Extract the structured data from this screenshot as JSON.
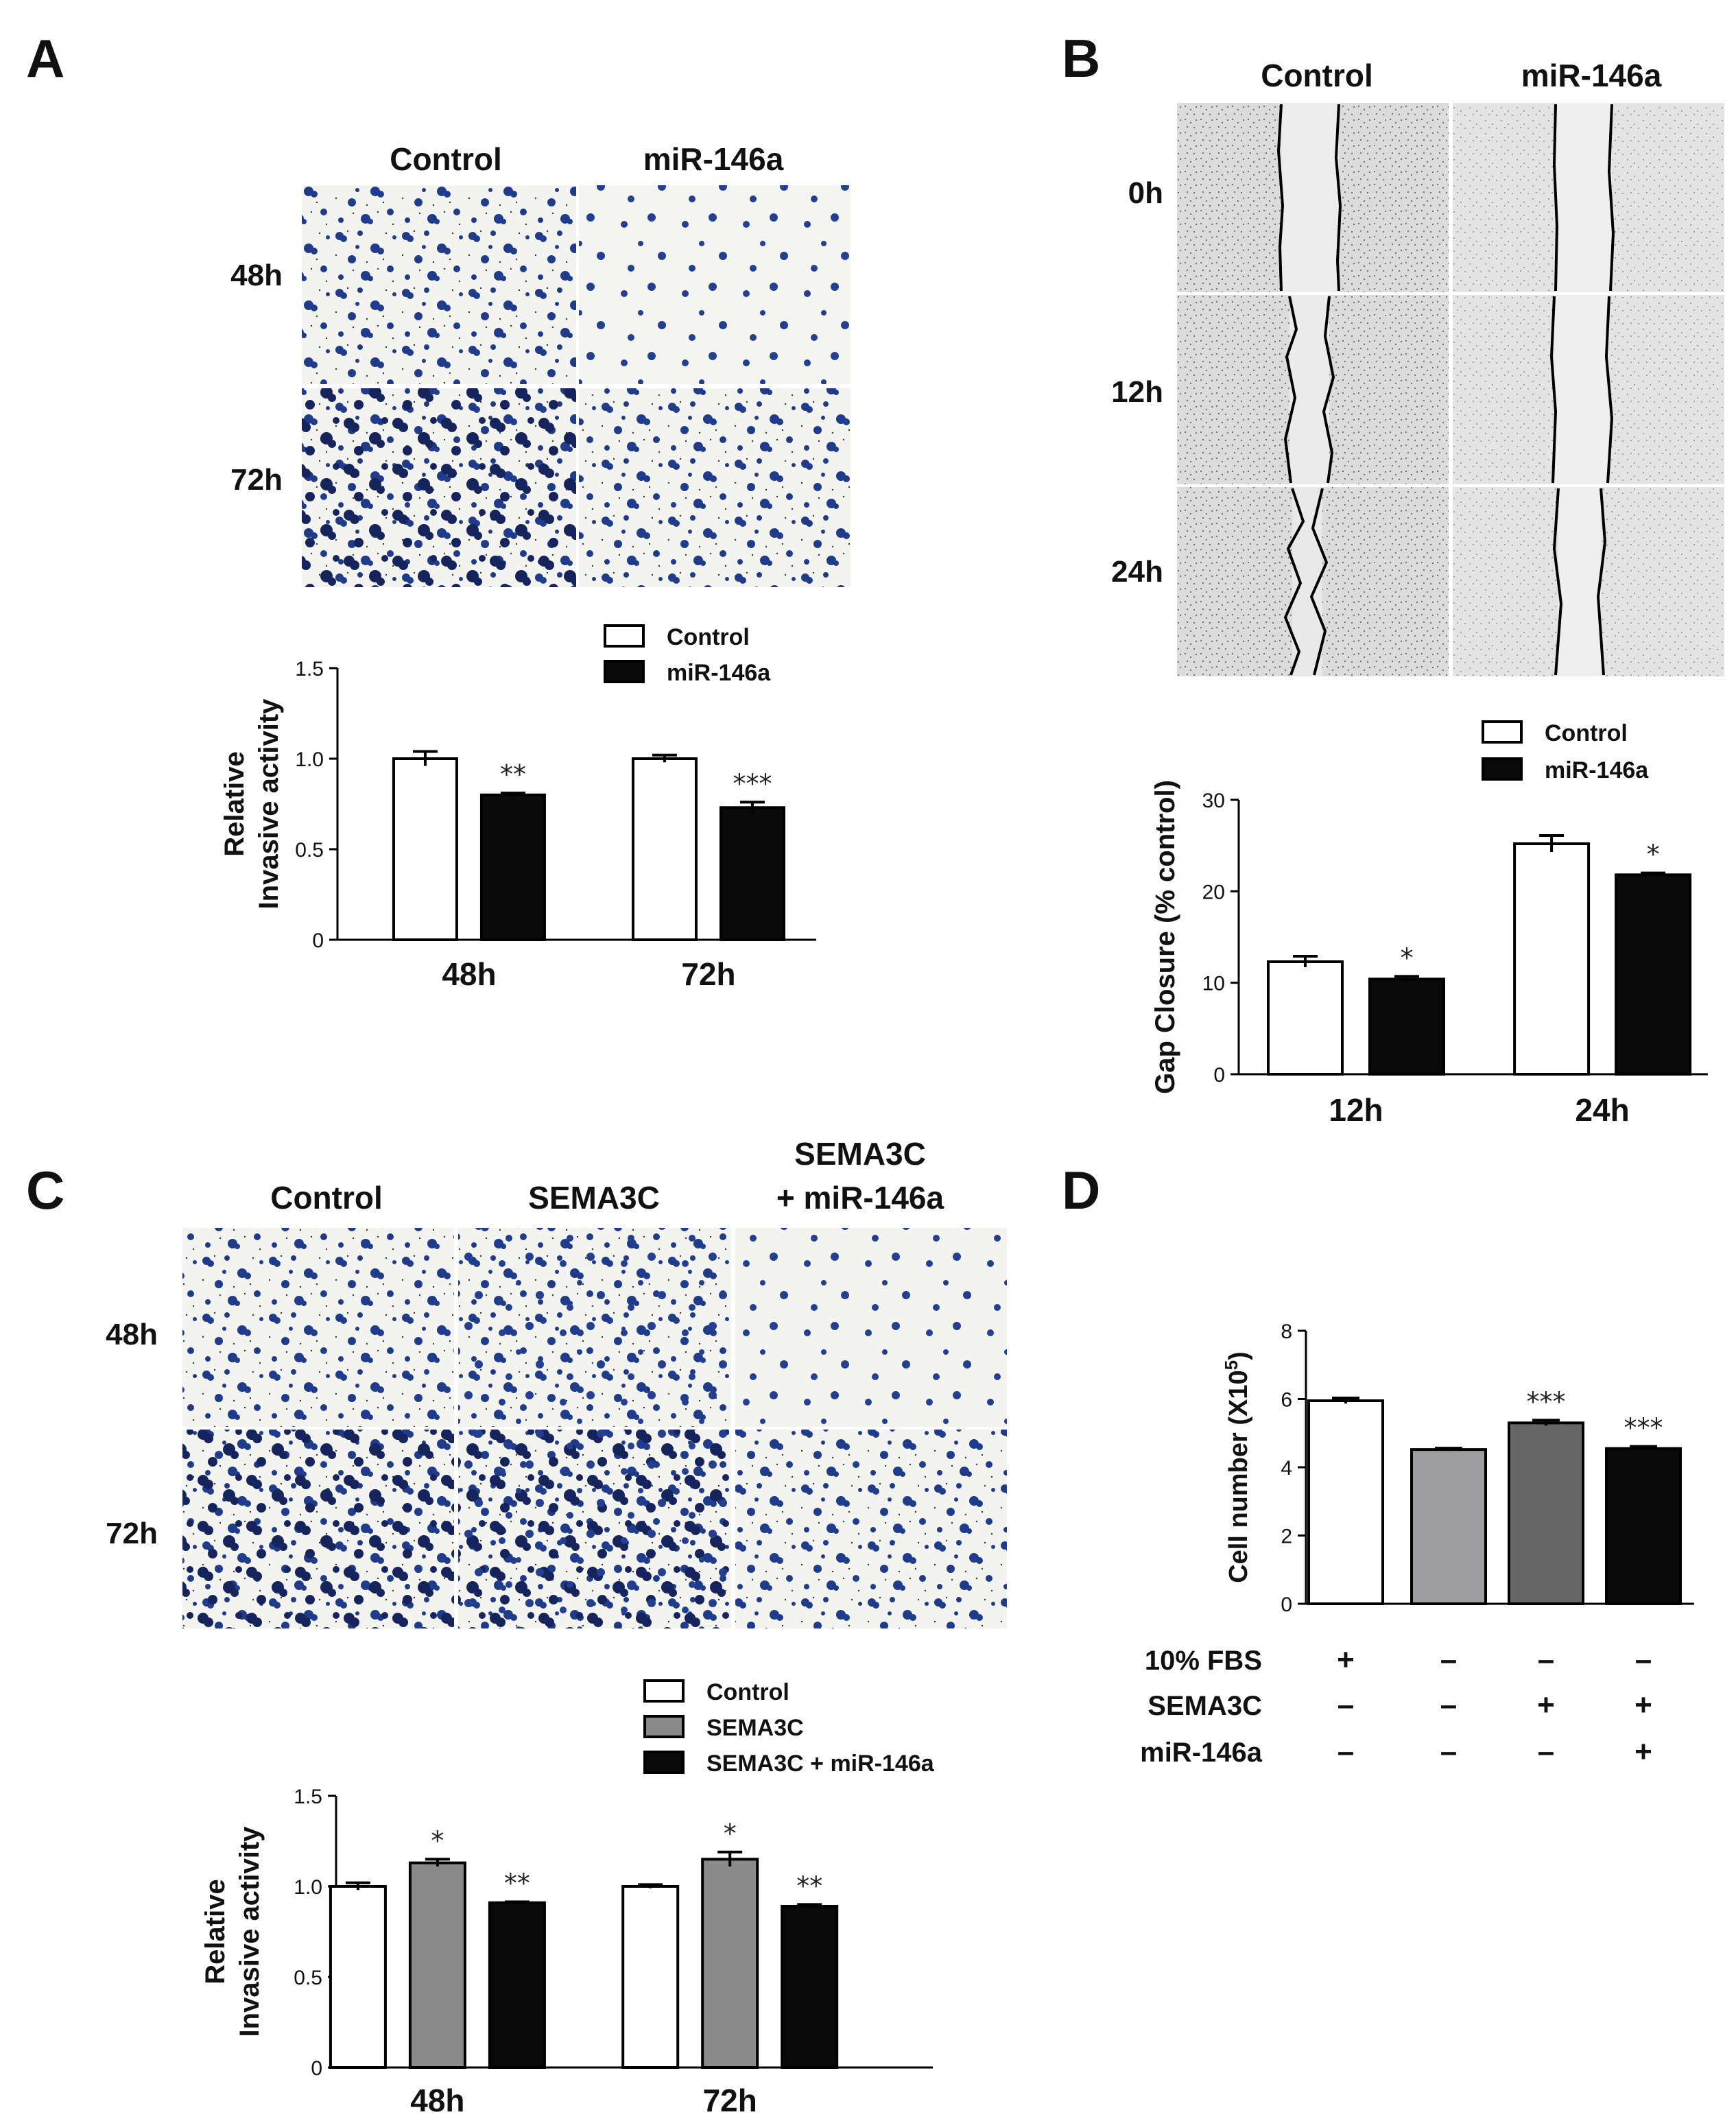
{
  "figure": {
    "panel_labels": [
      "A",
      "B",
      "C",
      "D"
    ],
    "A": {
      "columns": [
        "Control",
        "miR-146a"
      ],
      "rows": [
        "48h",
        "72h"
      ]
    },
    "B": {
      "columns": [
        "Control",
        "miR-146a"
      ],
      "rows": [
        "0h",
        "12h",
        "24h"
      ]
    },
    "C": {
      "columns": [
        "Control",
        "SEMA3C",
        "SEMA3C\n+ miR-146a"
      ],
      "column_lines": [
        [
          "Control"
        ],
        [
          "SEMA3C"
        ],
        [
          "SEMA3C",
          "+ miR-146a"
        ]
      ],
      "rows": [
        "48h",
        "72h"
      ]
    }
  },
  "colors": {
    "stain_blue": "#1f3c8c",
    "stain_dark": "#101a3a",
    "micro_bg": "#f2f2ee",
    "scratch_bg": "#e6e6e6",
    "bar_black": "#0a0a0a",
    "bar_gray": "#8a8a8a",
    "bar_darkgray": "#666666",
    "bar_lightgray": "#9d9da2"
  },
  "chart_data": [
    {
      "id": "A",
      "type": "bar",
      "categories": [
        "48h",
        "72h"
      ],
      "series": [
        {
          "name": "Control",
          "values": [
            1.0,
            1.0
          ],
          "errors": [
            0.04,
            0.02
          ],
          "fill": "#ffffff"
        },
        {
          "name": "miR-146a",
          "values": [
            0.8,
            0.73
          ],
          "errors": [
            0.01,
            0.03
          ],
          "fill": "#0a0a0a"
        }
      ],
      "annotations": [
        [
          "",
          ""
        ],
        [
          "**",
          "***"
        ]
      ],
      "ylabel": [
        "Relative",
        "Invasive activity"
      ],
      "ylim": [
        0,
        1.5
      ],
      "yticks": [
        0,
        0.5,
        1.0,
        1.5
      ],
      "ytick_labels": [
        "0",
        "0.5",
        "1.0",
        "1.5"
      ],
      "legend": [
        "Control",
        "miR-146a"
      ]
    },
    {
      "id": "B",
      "type": "bar",
      "categories": [
        "12h",
        "24h"
      ],
      "series": [
        {
          "name": "Control",
          "values": [
            12.3,
            25.2
          ],
          "errors": [
            0.6,
            0.9
          ],
          "fill": "#ffffff"
        },
        {
          "name": "miR-146a",
          "values": [
            10.4,
            21.8
          ],
          "errors": [
            0.3,
            0.2
          ],
          "fill": "#0a0a0a"
        }
      ],
      "annotations": [
        [
          "",
          ""
        ],
        [
          "*",
          "*"
        ]
      ],
      "ylabel": [
        "Gap Closure (% control)"
      ],
      "ylim": [
        0,
        30
      ],
      "yticks": [
        0,
        10,
        20,
        30
      ],
      "ytick_labels": [
        "0",
        "10",
        "20",
        "30"
      ],
      "legend": [
        "Control",
        "miR-146a"
      ]
    },
    {
      "id": "C",
      "type": "bar",
      "categories": [
        "48h",
        "72h"
      ],
      "series": [
        {
          "name": "Control",
          "values": [
            1.0,
            1.0
          ],
          "errors": [
            0.02,
            0.01
          ],
          "fill": "#ffffff"
        },
        {
          "name": "SEMA3C",
          "values": [
            1.13,
            1.15
          ],
          "errors": [
            0.02,
            0.04
          ],
          "fill": "#8a8a8a"
        },
        {
          "name": "SEMA3C + miR-146a",
          "values": [
            0.91,
            0.89
          ],
          "errors": [
            0.005,
            0.01
          ],
          "fill": "#0a0a0a"
        }
      ],
      "annotations": [
        [
          "",
          ""
        ],
        [
          "*",
          "*"
        ],
        [
          "**",
          "**"
        ]
      ],
      "ylabel": [
        "Relative",
        "Invasive activity"
      ],
      "ylim": [
        0,
        1.5
      ],
      "yticks": [
        0,
        0.5,
        1.0,
        1.5
      ],
      "ytick_labels": [
        "0",
        "0.5",
        "1.0",
        "1.5"
      ],
      "legend": [
        "Control",
        "SEMA3C",
        "SEMA3C + miR-146a"
      ]
    },
    {
      "id": "D",
      "type": "bar",
      "categories": [
        "1",
        "2",
        "3",
        "4"
      ],
      "values": [
        5.95,
        4.52,
        5.3,
        4.55
      ],
      "errors": [
        0.08,
        0.04,
        0.08,
        0.06
      ],
      "fills": [
        "#ffffff",
        "#9d9da2",
        "#666666",
        "#0a0a0a"
      ],
      "annotations": [
        "",
        "",
        "***",
        "***"
      ],
      "ylabel_main": "Cell number (X10",
      "ylabel_sup": "5",
      "ylabel_end": ")",
      "ylim": [
        0,
        8
      ],
      "yticks": [
        0,
        2,
        4,
        6,
        8
      ],
      "ytick_labels": [
        "0",
        "2",
        "4",
        "6",
        "8"
      ],
      "conditions": [
        {
          "name": "10% FBS",
          "signs": [
            "+",
            "–",
            "–",
            "–"
          ]
        },
        {
          "name": "SEMA3C",
          "signs": [
            "–",
            "–",
            "+",
            "+"
          ]
        },
        {
          "name": "miR-146a",
          "signs": [
            "–",
            "–",
            "–",
            "+"
          ]
        }
      ]
    }
  ]
}
